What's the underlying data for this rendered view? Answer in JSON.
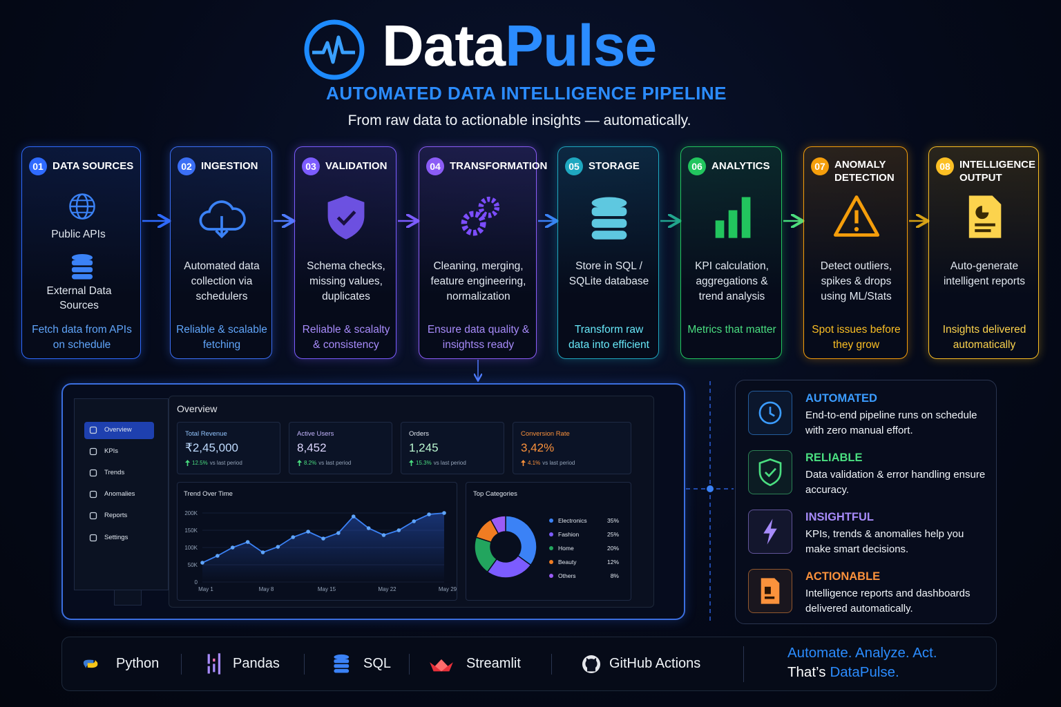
{
  "header": {
    "title_main": "Data",
    "title_accent": "Pulse",
    "subtitle": "AUTOMATED DATA INTELLIGENCE PIPELINE",
    "tagline": "From raw data to actionable insights — automatically."
  },
  "steps": [
    {
      "number": "01",
      "title": "DATA SOURCES",
      "labels": [
        "Public APIs",
        "External Data Sources"
      ],
      "highlight": "Fetch data from APIs on schedule"
    },
    {
      "number": "02",
      "title": "INGESTION",
      "description": "Automated data collection via schedulers",
      "highlight": "Reliable & scalable fetching"
    },
    {
      "number": "03",
      "title": "VALIDATION",
      "description": "Schema checks, missing values, duplicates",
      "highlight": "Reliable & scalalty & consistency"
    },
    {
      "number": "04",
      "title": "TRANSFORMATION",
      "description": "Cleaning, merging, feature engineering, normalization",
      "highlight": "Ensure data quality & insightss ready"
    },
    {
      "number": "05",
      "title": "STORAGE",
      "description": "Store in SQL / SQLite database",
      "highlight": "Transform raw data into efficient"
    },
    {
      "number": "06",
      "title": "ANALYTICS",
      "description": "KPI calculation, aggregations & trend analysis",
      "highlight": "Metrics that matter"
    },
    {
      "number": "07",
      "title": "ANOMALY DETECTION",
      "description": "Detect outliers, spikes & drops using ML/Stats",
      "highlight": "Spot issues before they grow"
    },
    {
      "number": "08",
      "title": "INTELLIGENCE OUTPUT",
      "description": "Auto-generate intelligent reports",
      "highlight": "Insights delivered automatically"
    }
  ],
  "dashboard": {
    "nav": [
      "Overview",
      "KPIs",
      "Trends",
      "Anomalies",
      "Reports",
      "Settings"
    ],
    "heading": "Overview",
    "period_note": "vs last period",
    "kpis": [
      {
        "label": "Total Revenue",
        "value": "₹2,45,000",
        "change": "12.5%"
      },
      {
        "label": "Active Users",
        "value": "8,452",
        "change": "8.2%"
      },
      {
        "label": "Orders",
        "value": "1,245",
        "change": "15.3%"
      },
      {
        "label": "Conversion Rate",
        "value": "3,42%",
        "change": "4.1%"
      }
    ],
    "trend_chart": {
      "type": "line",
      "title": "Trend Over Time",
      "categories": [
        "May 1",
        null,
        null,
        null,
        "May 8",
        null,
        null,
        null,
        "May 15",
        null,
        null,
        null,
        "May 22",
        null,
        null,
        null,
        "May 29"
      ],
      "values": [
        56000,
        76000,
        100000,
        116000,
        86000,
        102000,
        130000,
        146000,
        126000,
        142000,
        190000,
        156000,
        136000,
        150000,
        176000,
        196000,
        200000
      ],
      "ylim": [
        0,
        200000
      ],
      "yticks": [
        0,
        {
          "value": 50000,
          "label": "50K"
        },
        {
          "value": 100000,
          "label": "100K"
        },
        {
          "value": 150000,
          "label": "150K"
        },
        {
          "value": 200000,
          "label": "200K"
        }
      ],
      "color": "#3b82f6"
    },
    "category_chart": {
      "type": "pie",
      "title": "Top Categories",
      "categories": [
        "Electronics",
        "Fashion",
        "Home",
        "Beauty",
        "Others"
      ],
      "values": [
        35,
        25,
        20,
        12,
        8
      ],
      "value_labels": [
        "35%",
        "25%",
        "20%",
        "12%",
        "8%"
      ],
      "colors": [
        "#3b82f6",
        "#7c5cff",
        "#22a55e",
        "#f07c22",
        "#9b5cf6"
      ]
    }
  },
  "features": [
    {
      "title": "AUTOMATED",
      "text": "End-to-end pipeline runs on schedule with zero manual effort."
    },
    {
      "title": "RELIABLE",
      "text": "Data validation & error handling ensure accuracy."
    },
    {
      "title": "INSIGHTFUL",
      "text": "KPIs, trends & anomalies help you make smart decisions."
    },
    {
      "title": "ACTIONABLE",
      "text": "Intelligence reports and dashboards delivered automatically."
    }
  ],
  "tech_stack": [
    "Python",
    "Pandas",
    "SQL",
    "Streamlit",
    "GitHub Actions"
  ],
  "slogan": {
    "line1": "Automate. Analyze. Act.",
    "line2_prefix": "That’s",
    "line2_accent": "DataPulse."
  }
}
